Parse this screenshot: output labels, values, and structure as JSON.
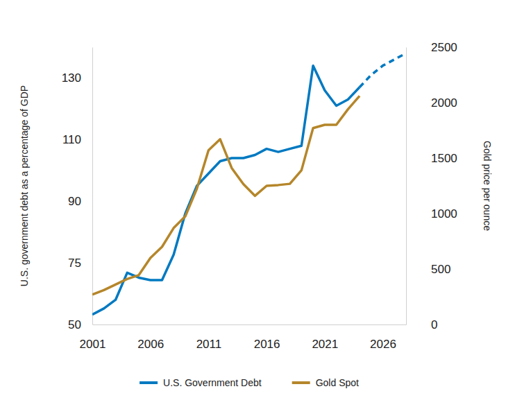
{
  "chart_data": {
    "type": "line",
    "x": [
      2001,
      2002,
      2003,
      2004,
      2005,
      2006,
      2007,
      2008,
      2009,
      2010,
      2011,
      2012,
      2013,
      2014,
      2015,
      2016,
      2017,
      2018,
      2019,
      2020,
      2021,
      2022,
      2023,
      2024,
      2025,
      2026,
      2027,
      2028
    ],
    "xlim": [
      2001,
      2028
    ],
    "xticks": [
      2001,
      2006,
      2011,
      2016,
      2021,
      2026
    ],
    "ylim": [
      50,
      140
    ],
    "yticks": [
      50,
      75,
      90,
      110,
      130
    ],
    "y2lim": [
      0,
      2500
    ],
    "y2ticks": [
      0,
      500,
      1000,
      1500,
      2000,
      2500
    ],
    "y_label": "U.S. government debt as a percentage of GDP",
    "y2_label": "Gold price per ounce",
    "legend": "bottom",
    "grid": false,
    "series": [
      {
        "name": "U.S. Government Debt",
        "color": "#0079c1",
        "line_style": "solid",
        "values": [
          54,
          56.5,
          60,
          71,
          69,
          68,
          68,
          77,
          87,
          95,
          99,
          103,
          104,
          104,
          105,
          107,
          106,
          107,
          108,
          134,
          126,
          121,
          123,
          127,
          null,
          null,
          null,
          null
        ]
      },
      {
        "name": "Gold Spot",
        "color": "#b5862a",
        "line_style": "solid",
        "axis": "y2",
        "values": [
          270,
          310,
          360,
          410,
          445,
          600,
          700,
          870,
          975,
          1225,
          1570,
          1670,
          1410,
          1265,
          1160,
          1250,
          1257,
          1268,
          1390,
          1770,
          1800,
          1800,
          1940,
          2060,
          null,
          null,
          null,
          null
        ]
      },
      {
        "color": "#0079c1",
        "line_style": "dashed",
        "values": [
          null,
          null,
          null,
          null,
          null,
          null,
          null,
          null,
          null,
          null,
          null,
          null,
          null,
          null,
          null,
          null,
          null,
          null,
          null,
          null,
          null,
          null,
          null,
          127,
          131,
          134,
          136,
          138
        ]
      }
    ]
  }
}
